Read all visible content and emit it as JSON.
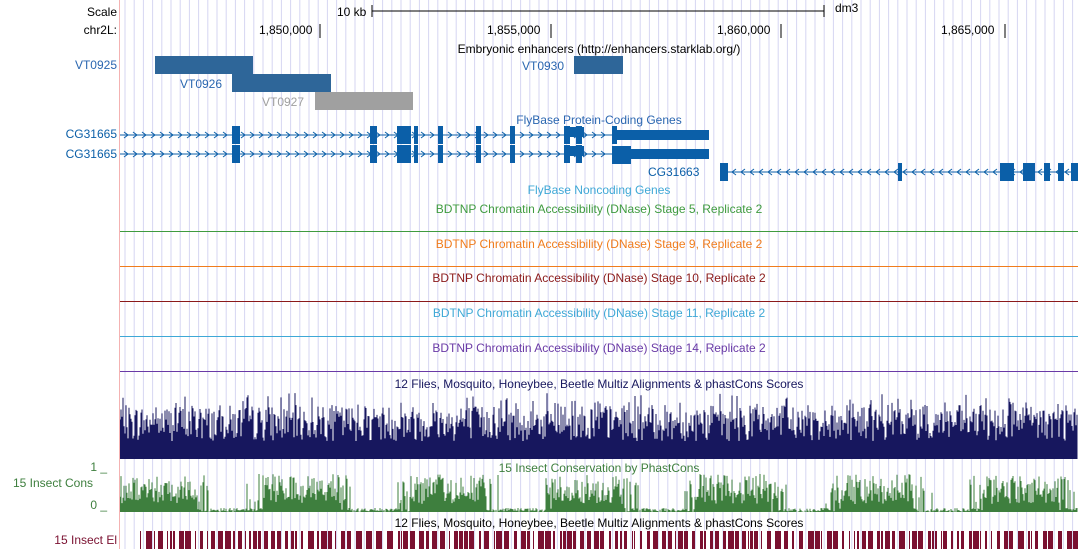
{
  "labels": {
    "scale": "Scale",
    "chrom": "chr2L:",
    "vt0925": "VT0925",
    "cg31665_a": "CG31665",
    "cg31665_b": "CG31665",
    "insect_cons": "15 Insect Cons",
    "insect_cons_max": "1 _",
    "insect_cons_min": "0 _",
    "insect_el": "15 Insect El"
  },
  "ruler": {
    "scale_text": "10 kb",
    "assembly": "dm3",
    "positions": [
      "1,850,000",
      "1,855,000",
      "1,860,000",
      "1,865,000"
    ]
  },
  "tracks": {
    "enhancers_title": "Embryonic enhancers (http://enhancers.starklab.org/)",
    "enhancers": {
      "vt0926": "VT0926",
      "vt0927": "VT0927",
      "vt0930": "VT0930"
    },
    "flybase_title": "FlyBase Protein-Coding Genes",
    "gene_cg31663": "CG31663",
    "noncoding_title": "FlyBase Noncoding Genes",
    "dnase": [
      {
        "title": "BDTNP Chromatin Accessibility (DNase) Stage 5, Replicate 2",
        "color": "#3f9b3f"
      },
      {
        "title": "BDTNP Chromatin Accessibility (DNase) Stage 9, Replicate 2",
        "color": "#f07c1c"
      },
      {
        "title": "BDTNP Chromatin Accessibility (DNase) Stage 10, Replicate 2",
        "color": "#8b1a1a"
      },
      {
        "title": "BDTNP Chromatin Accessibility (DNase) Stage 11, Replicate 2",
        "color": "#3ea8d6"
      },
      {
        "title": "BDTNP Chromatin Accessibility (DNase) Stage 14, Replicate 2",
        "color": "#6a3aa6"
      }
    ],
    "multiz_title": "12 Flies, Mosquito, Honeybee, Beetle Multiz Alignments & phastCons Scores",
    "phastcons_title": "15 Insect Conservation by PhastCons",
    "elements_title": "12 Flies, Mosquito, Honeybee, Beetle Multiz Alignments & phastCons Scores"
  },
  "colors": {
    "enhancer": "#2e6699",
    "enhancer_faded": "#a0a0a0",
    "gene": "#0b5fa8",
    "multiz": "#17175e",
    "phastcons": "#3e7f3e",
    "elements": "#7a1030",
    "gridline": "#d6d6f2",
    "link": "#2a66b0"
  }
}
